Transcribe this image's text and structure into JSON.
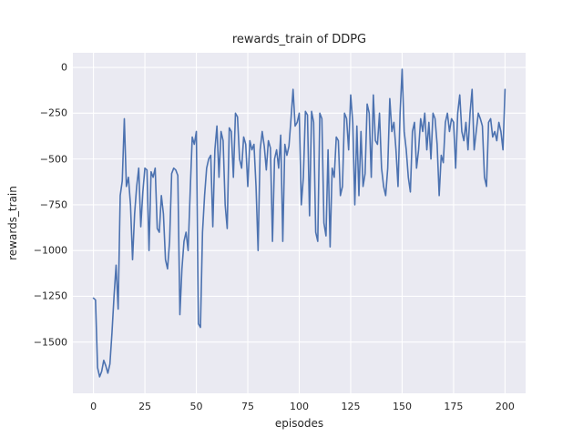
{
  "chart_data": {
    "type": "line",
    "title": "rewards_train of DDPG",
    "xlabel": "episodes",
    "ylabel": "rewards_train",
    "legend": null,
    "grid": true,
    "plot_bg": "#eaeaf2",
    "grid_color": "#ffffff",
    "line_color": "#4c72b0",
    "xlim": [
      -10,
      210
    ],
    "ylim": [
      -1780,
      80
    ],
    "x_ticks": [
      0,
      25,
      50,
      75,
      100,
      125,
      150,
      175,
      200
    ],
    "y_ticks": [
      0,
      -250,
      -500,
      -750,
      -1000,
      -1250,
      -1500
    ],
    "x_start": 0,
    "x_step": 1,
    "y": [
      -1260,
      -1270,
      -1640,
      -1690,
      -1660,
      -1600,
      -1630,
      -1670,
      -1620,
      -1450,
      -1250,
      -1080,
      -1320,
      -700,
      -620,
      -280,
      -650,
      -600,
      -750,
      -1050,
      -800,
      -650,
      -550,
      -870,
      -680,
      -550,
      -560,
      -1000,
      -570,
      -600,
      -550,
      -880,
      -900,
      -700,
      -800,
      -1050,
      -1100,
      -950,
      -580,
      -550,
      -560,
      -590,
      -1350,
      -1100,
      -950,
      -900,
      -1000,
      -680,
      -380,
      -420,
      -350,
      -1400,
      -1420,
      -900,
      -700,
      -550,
      -500,
      -480,
      -870,
      -450,
      -320,
      -600,
      -350,
      -400,
      -750,
      -880,
      -330,
      -350,
      -600,
      -250,
      -270,
      -500,
      -550,
      -380,
      -420,
      -650,
      -400,
      -450,
      -420,
      -650,
      -1000,
      -450,
      -350,
      -430,
      -560,
      -400,
      -440,
      -950,
      -500,
      -450,
      -550,
      -370,
      -950,
      -420,
      -480,
      -430,
      -280,
      -120,
      -320,
      -300,
      -250,
      -750,
      -600,
      -240,
      -260,
      -810,
      -240,
      -300,
      -900,
      -950,
      -250,
      -280,
      -850,
      -920,
      -450,
      -980,
      -550,
      -600,
      -380,
      -400,
      -700,
      -650,
      -250,
      -280,
      -450,
      -150,
      -300,
      -750,
      -320,
      -700,
      -350,
      -650,
      -580,
      -200,
      -250,
      -600,
      -150,
      -400,
      -420,
      -250,
      -550,
      -650,
      -700,
      -550,
      -170,
      -350,
      -300,
      -450,
      -650,
      -250,
      -10,
      -350,
      -450,
      -600,
      -680,
      -350,
      -300,
      -550,
      -450,
      -280,
      -350,
      -250,
      -450,
      -300,
      -500,
      -250,
      -280,
      -420,
      -700,
      -480,
      -520,
      -300,
      -250,
      -350,
      -280,
      -300,
      -550,
      -250,
      -150,
      -350,
      -400,
      -300,
      -450,
      -250,
      -120,
      -450,
      -350,
      -250,
      -280,
      -320,
      -600,
      -650,
      -300,
      -280,
      -380,
      -350,
      -400,
      -300,
      -350,
      -450,
      -120
    ]
  }
}
